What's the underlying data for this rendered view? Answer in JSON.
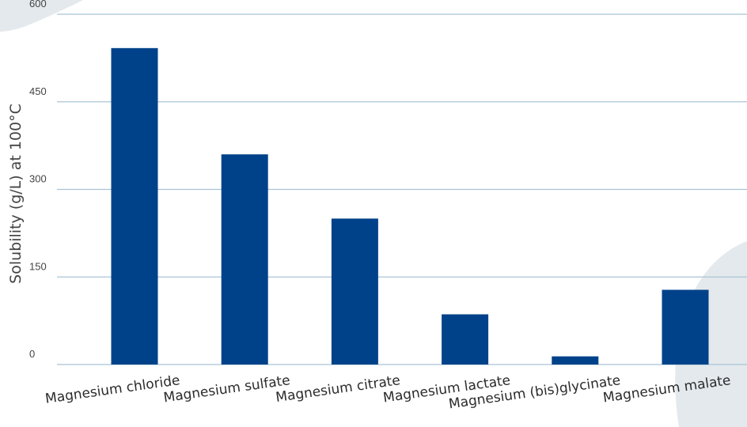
{
  "chart_data": {
    "type": "bar",
    "categories": [
      "Magnesium chloride",
      "Magnesium sulfate",
      "Magnesium citrate",
      "Magnesium lactate",
      "Magnesium (bis)glycinate",
      "Magnesium malate"
    ],
    "values": [
      542,
      360,
      250,
      86,
      14,
      128
    ],
    "title": "",
    "xlabel": "",
    "ylabel": "Solubility (g/L) at 100°C",
    "ylim": [
      0,
      600
    ],
    "yticks": [
      "0",
      "150",
      "300",
      "450",
      "600"
    ],
    "grid": true,
    "legend": "none",
    "colors": {
      "bar": "#00428a",
      "grid": "#a9c4d6",
      "background_shape": "#e3e9ec"
    }
  }
}
